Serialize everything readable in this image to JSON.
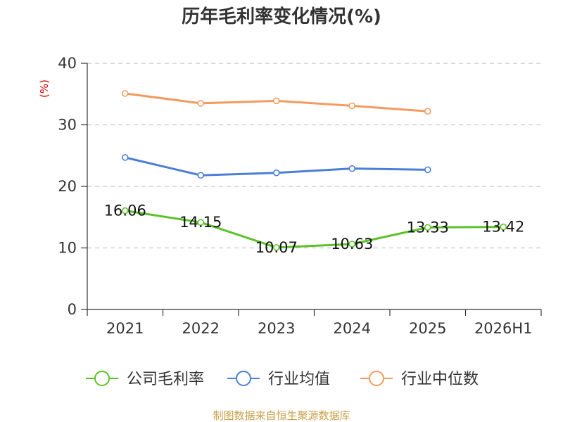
{
  "chart_data": {
    "type": "line",
    "title": "历年毛利率变化情况(%)",
    "ylabel": "(%)",
    "xlabel": "",
    "categories": [
      "2021",
      "2022",
      "2023",
      "2024",
      "2025",
      "2026H1"
    ],
    "ylim": [
      0,
      40
    ],
    "yticks": [
      0,
      10,
      20,
      30,
      40
    ],
    "grid": "horizontal dashed",
    "legend_position": "bottom",
    "series": [
      {
        "name": "公司毛利率",
        "color": "#5cc22a",
        "values": [
          16.06,
          14.15,
          10.07,
          10.63,
          13.33,
          13.42
        ],
        "data_labels": [
          "16.06",
          "14.15",
          "10.07",
          "10.63",
          "13.33",
          "13.42"
        ]
      },
      {
        "name": "行业均值",
        "color": "#4a7fd6",
        "values": [
          24.7,
          21.8,
          22.2,
          22.9,
          22.7,
          null
        ]
      },
      {
        "name": "行业中位数",
        "color": "#f39a5e",
        "values": [
          35.1,
          33.5,
          33.9,
          33.1,
          32.2,
          null
        ]
      }
    ]
  },
  "source_note": "制图数据来自恒生聚源数据库"
}
